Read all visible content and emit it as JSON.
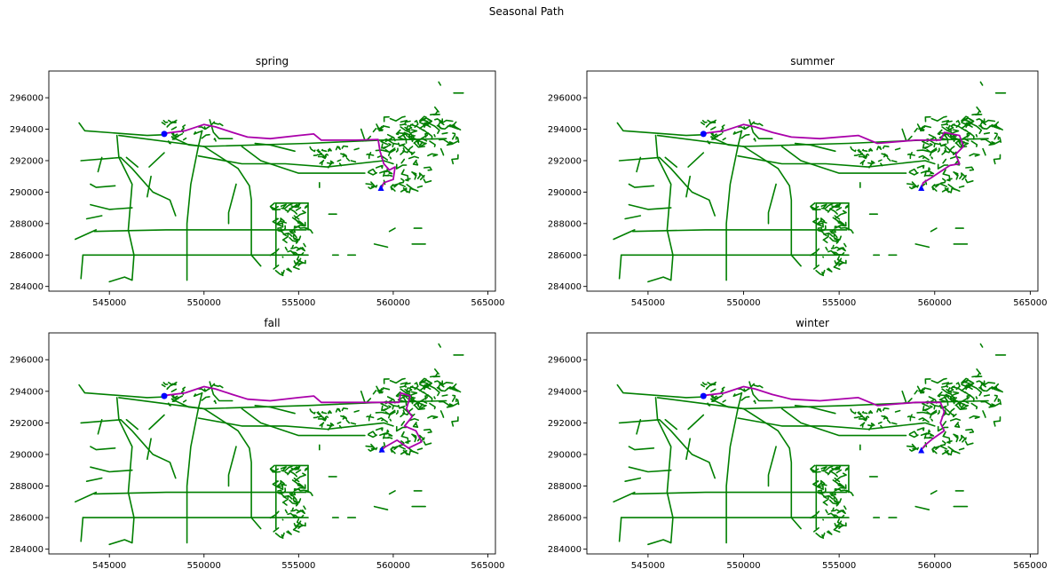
{
  "figure": {
    "title": "Seasonal Path"
  },
  "colors": {
    "network": "#007f00",
    "path": "#aa00aa",
    "start_marker": "#0000ff",
    "end_marker": "#0000ff",
    "axes": "#000000",
    "background": "#ffffff"
  },
  "chart_data": [
    {
      "type": "line",
      "title": "spring",
      "x_ticks": [
        "545000",
        "550000",
        "555000",
        "560000",
        "565000"
      ],
      "y_ticks": [
        "284000",
        "286000",
        "288000",
        "290000",
        "292000",
        "294000",
        "296000"
      ],
      "xlim": [
        541800,
        565400
      ],
      "ylim": [
        283700,
        297700
      ],
      "series": [
        {
          "role": "network",
          "color": "#007f00"
        },
        {
          "role": "path",
          "color": "#aa00aa",
          "points": [
            [
              548000,
              293750
            ],
            [
              549000,
              293900
            ],
            [
              550000,
              294300
            ],
            [
              550600,
              294150
            ],
            [
              551500,
              293800
            ],
            [
              552300,
              293500
            ],
            [
              553500,
              293400
            ],
            [
              555000,
              293600
            ],
            [
              555800,
              293700
            ],
            [
              556200,
              293300
            ],
            [
              558000,
              293300
            ],
            [
              559200,
              293350
            ],
            [
              559300,
              292600
            ],
            [
              559500,
              291800
            ],
            [
              559800,
              291400
            ],
            [
              560100,
              291600
            ],
            [
              560000,
              290800
            ],
            [
              559500,
              290600
            ],
            [
              559400,
              290300
            ]
          ]
        }
      ],
      "start": [
        547900,
        293700
      ],
      "end": [
        559350,
        290250
      ]
    },
    {
      "type": "line",
      "title": "summer",
      "x_ticks": [
        "545000",
        "550000",
        "555000",
        "560000",
        "565000"
      ],
      "y_ticks": [
        "284000",
        "286000",
        "288000",
        "290000",
        "292000",
        "294000",
        "296000"
      ],
      "xlim": [
        541800,
        565400
      ],
      "ylim": [
        283700,
        297700
      ],
      "series": [
        {
          "role": "network",
          "color": "#007f00"
        },
        {
          "role": "path",
          "color": "#aa00aa",
          "points": [
            [
              548000,
              293750
            ],
            [
              549000,
              293900
            ],
            [
              550000,
              294300
            ],
            [
              550600,
              294150
            ],
            [
              551500,
              293800
            ],
            [
              552500,
              293500
            ],
            [
              554000,
              293400
            ],
            [
              556000,
              293600
            ],
            [
              557000,
              293100
            ],
            [
              559000,
              293300
            ],
            [
              560300,
              293300
            ],
            [
              560500,
              293800
            ],
            [
              561300,
              293600
            ],
            [
              561500,
              292900
            ],
            [
              561100,
              292400
            ],
            [
              561300,
              291800
            ],
            [
              560800,
              291700
            ],
            [
              560300,
              291300
            ],
            [
              559800,
              290900
            ],
            [
              559400,
              290600
            ],
            [
              559300,
              290300
            ]
          ]
        }
      ],
      "start": [
        547900,
        293700
      ],
      "end": [
        559300,
        290250
      ]
    },
    {
      "type": "line",
      "title": "fall",
      "x_ticks": [
        "545000",
        "550000",
        "555000",
        "560000",
        "565000"
      ],
      "y_ticks": [
        "284000",
        "286000",
        "288000",
        "290000",
        "292000",
        "294000",
        "296000"
      ],
      "xlim": [
        541800,
        565400
      ],
      "ylim": [
        283700,
        297700
      ],
      "series": [
        {
          "role": "network",
          "color": "#007f00"
        },
        {
          "role": "path",
          "color": "#aa00aa",
          "points": [
            [
              548000,
              293750
            ],
            [
              549000,
              293900
            ],
            [
              550000,
              294300
            ],
            [
              550600,
              294150
            ],
            [
              551500,
              293800
            ],
            [
              552300,
              293500
            ],
            [
              553500,
              293400
            ],
            [
              555000,
              293600
            ],
            [
              555800,
              293700
            ],
            [
              556200,
              293300
            ],
            [
              558000,
              293300
            ],
            [
              559500,
              293300
            ],
            [
              560300,
              293300
            ],
            [
              560400,
              293900
            ],
            [
              560900,
              293700
            ],
            [
              560700,
              292900
            ],
            [
              561000,
              292400
            ],
            [
              560600,
              291800
            ],
            [
              561200,
              291500
            ],
            [
              561500,
              290800
            ],
            [
              560800,
              290400
            ],
            [
              560200,
              290900
            ],
            [
              559600,
              290500
            ],
            [
              559400,
              290300
            ]
          ]
        }
      ],
      "start": [
        547900,
        293700
      ],
      "end": [
        559400,
        290300
      ]
    },
    {
      "type": "line",
      "title": "winter",
      "x_ticks": [
        "545000",
        "550000",
        "555000",
        "560000",
        "565000"
      ],
      "y_ticks": [
        "284000",
        "286000",
        "288000",
        "290000",
        "292000",
        "294000",
        "296000"
      ],
      "xlim": [
        541800,
        565400
      ],
      "ylim": [
        283700,
        297700
      ],
      "series": [
        {
          "role": "network",
          "color": "#007f00"
        },
        {
          "role": "path",
          "color": "#aa00aa",
          "points": [
            [
              548000,
              293750
            ],
            [
              549000,
              293900
            ],
            [
              550000,
              294300
            ],
            [
              550600,
              294150
            ],
            [
              551500,
              293800
            ],
            [
              552500,
              293500
            ],
            [
              554000,
              293400
            ],
            [
              556000,
              293600
            ],
            [
              557000,
              293100
            ],
            [
              559000,
              293300
            ],
            [
              560300,
              293300
            ],
            [
              560500,
              292700
            ],
            [
              560300,
              292000
            ],
            [
              560500,
              291500
            ],
            [
              559900,
              291000
            ],
            [
              559500,
              290600
            ],
            [
              559300,
              290300
            ]
          ]
        }
      ],
      "start": [
        547900,
        293700
      ],
      "end": [
        559300,
        290250
      ]
    }
  ]
}
